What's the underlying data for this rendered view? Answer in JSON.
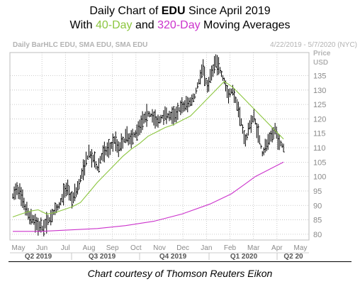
{
  "title": {
    "line1_prefix": "Daily Chart of ",
    "line1_ticker": "EDU",
    "line1_suffix": " Since April 2019",
    "line2_prefix": "With ",
    "line2_green": "40-Day",
    "line2_middle": " and ",
    "line2_magenta": "320-Day",
    "line2_suffix": " Moving Averages"
  },
  "footer": "Chart courtesy of Thomson Reuters Eikon",
  "colors": {
    "price": "#000000",
    "sma40": "#8cc63f",
    "sma320": "#cc33cc",
    "grid": "#bdbdbd",
    "header_text": "#b3b3b3",
    "axis_text": "#8a8a8a",
    "quarter_text": "#555555"
  },
  "chart_data": {
    "type": "line",
    "header_left": "Daily BarHLC EDU, SMA EDU, SMA EDU",
    "header_right": "4/22/2019 - 5/7/2020 (NYC)",
    "y_axis_title": [
      "Price",
      "USD"
    ],
    "ylim": [
      78,
      143
    ],
    "y_ticks": [
      80,
      85,
      90,
      95,
      100,
      105,
      110,
      115,
      120,
      125,
      130,
      135
    ],
    "x_month_labels": [
      "May",
      "Jun",
      "Jul",
      "Aug",
      "Sep",
      "Oct",
      "Nov",
      "Dec",
      "Jan",
      "Feb",
      "Mar",
      "Apr",
      "May"
    ],
    "x_quarter_labels": [
      "Q2 2019",
      "Q3 2019",
      "Q4 2019",
      "Q1 2020",
      "Q2 20"
    ],
    "grid": true,
    "series": [
      {
        "name": "Daily BarHLC EDU",
        "style": "hlc-bars",
        "points": [
          [
            0,
            93
          ],
          [
            3,
            96
          ],
          [
            6,
            93
          ],
          [
            9,
            89
          ],
          [
            12,
            86
          ],
          [
            15,
            85
          ],
          [
            18,
            83
          ],
          [
            21,
            82
          ],
          [
            24,
            84
          ],
          [
            27,
            86
          ],
          [
            30,
            88
          ],
          [
            33,
            90
          ],
          [
            36,
            94
          ],
          [
            39,
            96
          ],
          [
            42,
            92
          ],
          [
            45,
            95
          ],
          [
            48,
            99
          ],
          [
            51,
            104
          ],
          [
            54,
            108
          ],
          [
            57,
            106
          ],
          [
            60,
            103
          ],
          [
            63,
            107
          ],
          [
            66,
            109
          ],
          [
            69,
            110
          ],
          [
            72,
            113
          ],
          [
            75,
            110
          ],
          [
            78,
            112
          ],
          [
            81,
            114
          ],
          [
            84,
            113
          ],
          [
            87,
            115
          ],
          [
            90,
            118
          ],
          [
            93,
            120
          ],
          [
            96,
            122
          ],
          [
            99,
            121
          ],
          [
            102,
            119
          ],
          [
            105,
            120
          ],
          [
            108,
            122
          ],
          [
            111,
            121
          ],
          [
            114,
            121
          ],
          [
            117,
            123
          ],
          [
            120,
            124
          ],
          [
            123,
            125
          ],
          [
            126,
            126
          ],
          [
            129,
            128
          ],
          [
            132,
            133
          ],
          [
            135,
            138
          ],
          [
            138,
            131
          ],
          [
            141,
            136
          ],
          [
            144,
            140
          ],
          [
            147,
            137
          ],
          [
            150,
            133
          ],
          [
            153,
            128
          ],
          [
            156,
            130
          ],
          [
            159,
            125
          ],
          [
            162,
            119
          ],
          [
            165,
            112
          ],
          [
            168,
            118
          ],
          [
            171,
            121
          ],
          [
            174,
            115
          ],
          [
            177,
            108
          ],
          [
            180,
            111
          ],
          [
            183,
            114
          ],
          [
            186,
            116
          ],
          [
            189,
            112
          ],
          [
            192,
            110
          ]
        ]
      },
      {
        "name": "SMA EDU (40-Day)",
        "style": "line",
        "points": [
          [
            0,
            86
          ],
          [
            6,
            87
          ],
          [
            12,
            88
          ],
          [
            18,
            88.5
          ],
          [
            24,
            87
          ],
          [
            30,
            87.5
          ],
          [
            36,
            88.5
          ],
          [
            42,
            89.5
          ],
          [
            48,
            91
          ],
          [
            54,
            94.5
          ],
          [
            60,
            98
          ],
          [
            66,
            101
          ],
          [
            72,
            104
          ],
          [
            78,
            107
          ],
          [
            84,
            109.5
          ],
          [
            90,
            111.5
          ],
          [
            96,
            114
          ],
          [
            102,
            115.5
          ],
          [
            108,
            117
          ],
          [
            114,
            118
          ],
          [
            120,
            119.5
          ],
          [
            126,
            121
          ],
          [
            132,
            124
          ],
          [
            138,
            127
          ],
          [
            144,
            130
          ],
          [
            150,
            133
          ],
          [
            156,
            131
          ],
          [
            162,
            128
          ],
          [
            168,
            125
          ],
          [
            174,
            122
          ],
          [
            180,
            119
          ],
          [
            186,
            116
          ],
          [
            192,
            113
          ]
        ]
      },
      {
        "name": "SMA EDU (320-Day)",
        "style": "line",
        "points": [
          [
            0,
            81
          ],
          [
            20,
            81
          ],
          [
            40,
            81.5
          ],
          [
            60,
            82
          ],
          [
            80,
            83
          ],
          [
            100,
            84.5
          ],
          [
            120,
            87
          ],
          [
            140,
            90.5
          ],
          [
            155,
            94
          ],
          [
            165,
            97.5
          ],
          [
            172,
            100
          ],
          [
            180,
            102
          ],
          [
            186,
            103.5
          ],
          [
            192,
            105
          ]
        ]
      }
    ]
  }
}
